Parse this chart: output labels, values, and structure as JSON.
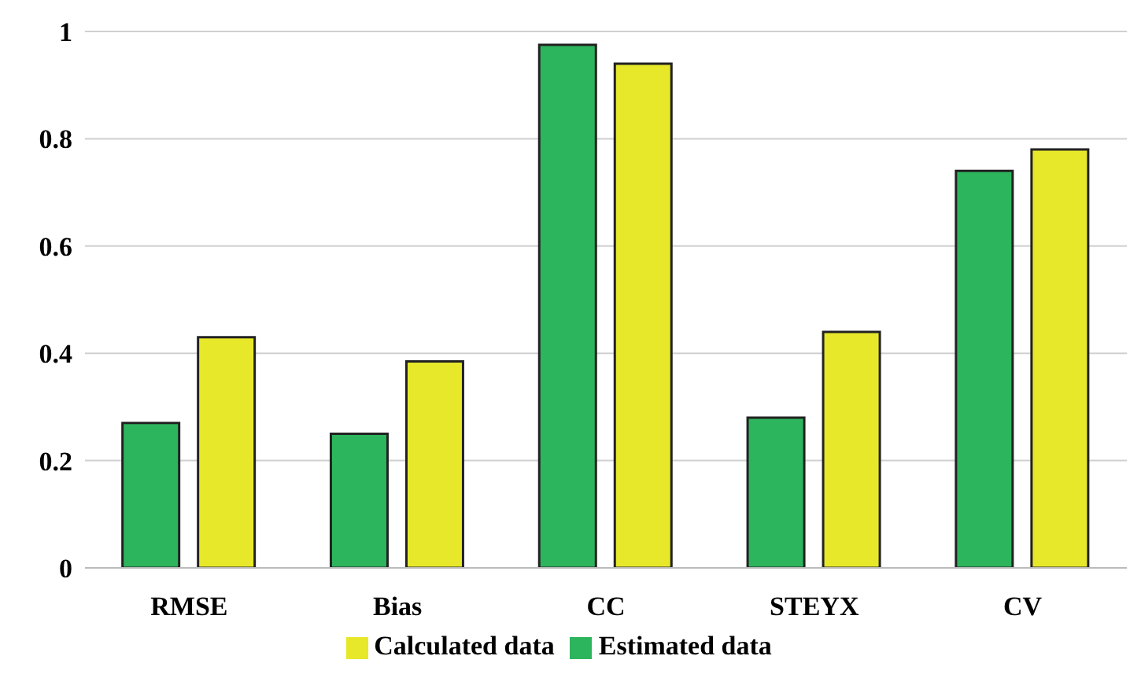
{
  "chart_data": {
    "type": "bar",
    "categories": [
      "RMSE",
      "Bias",
      "CC",
      "STEYX",
      "CV"
    ],
    "series": [
      {
        "name": "Estimated data",
        "color": "#2db55d",
        "values": [
          0.27,
          0.25,
          0.975,
          0.28,
          0.74
        ]
      },
      {
        "name": "Calculated data",
        "color": "#e8e82a",
        "values": [
          0.43,
          0.385,
          0.94,
          0.44,
          0.78
        ]
      }
    ],
    "ylim": [
      0,
      1
    ],
    "yticks": [
      0,
      0.2,
      0.4,
      0.6,
      0.8,
      1
    ],
    "grid": "y",
    "legend": "bottom"
  }
}
